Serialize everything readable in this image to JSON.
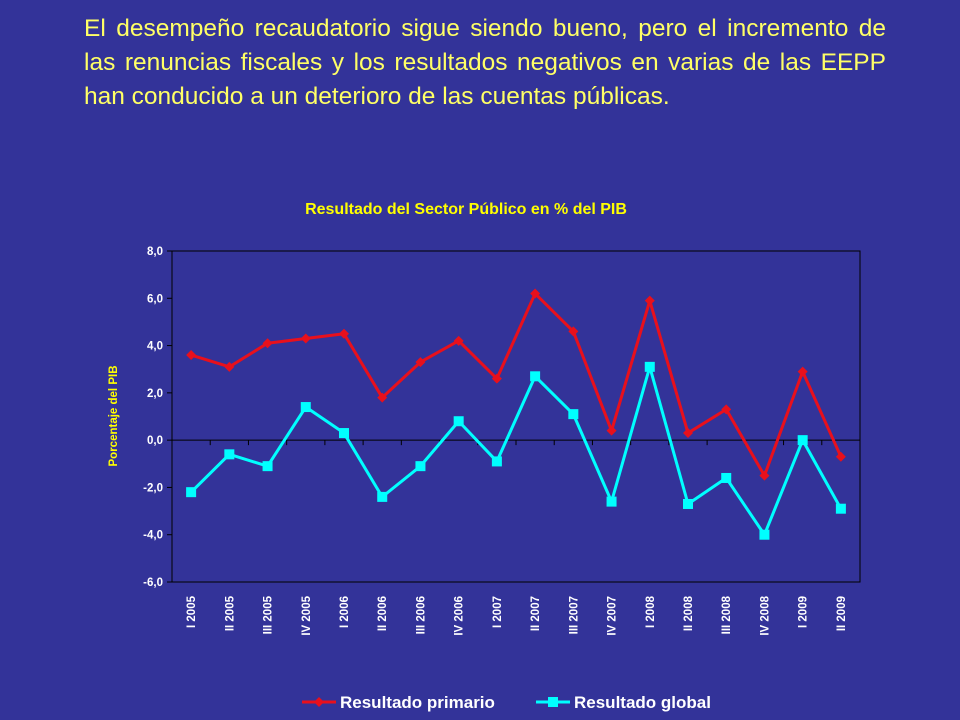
{
  "slide": {
    "headline": "El desempeño recaudatorio sigue siendo bueno, pero el incremento de las renuncias fiscales y los resultados negativos en varias de las EEPP han conducido a un deterioro de las cuentas públicas."
  },
  "colors": {
    "background": "#333399",
    "headline": "#FFFF66",
    "title": "#FFFF00",
    "primary_series": "#E8101C",
    "global_series": "#00FFFF",
    "axis_text": "#FFFFFF",
    "grid": "#000000"
  },
  "chart_data": {
    "type": "line",
    "title": "Resultado del Sector Público en % del PIB",
    "xlabel": "",
    "ylabel": "Porcentaje del PIB",
    "ylim": [
      -6.0,
      8.0
    ],
    "yticks": [
      "8,0",
      "6,0",
      "4,0",
      "2,0",
      "0,0",
      "-2,0",
      "-4,0",
      "-6,0"
    ],
    "grid": false,
    "legend_position": "bottom",
    "categories": [
      "I 2005",
      "II 2005",
      "III 2005",
      "IV 2005",
      "I 2006",
      "II 2006",
      "III 2006",
      "IV 2006",
      "I 2007",
      "II 2007",
      "III 2007",
      "IV 2007",
      "I 2008",
      "II 2008",
      "III 2008",
      "IV 2008",
      "I 2009",
      "II 2009"
    ],
    "series": [
      {
        "name": "Resultado primario",
        "marker": "diamond",
        "values": [
          3.6,
          3.1,
          4.1,
          4.3,
          4.5,
          1.8,
          3.3,
          4.2,
          2.6,
          6.2,
          4.6,
          0.4,
          5.9,
          0.3,
          1.3,
          -1.5,
          2.9,
          -0.7
        ]
      },
      {
        "name": "Resultado global",
        "marker": "square",
        "values": [
          -2.2,
          -0.6,
          -1.1,
          1.4,
          0.3,
          -2.4,
          -1.1,
          0.8,
          -0.9,
          2.7,
          1.1,
          -2.6,
          3.1,
          -2.7,
          -1.6,
          -4.0,
          0.0,
          -2.9
        ]
      }
    ]
  }
}
